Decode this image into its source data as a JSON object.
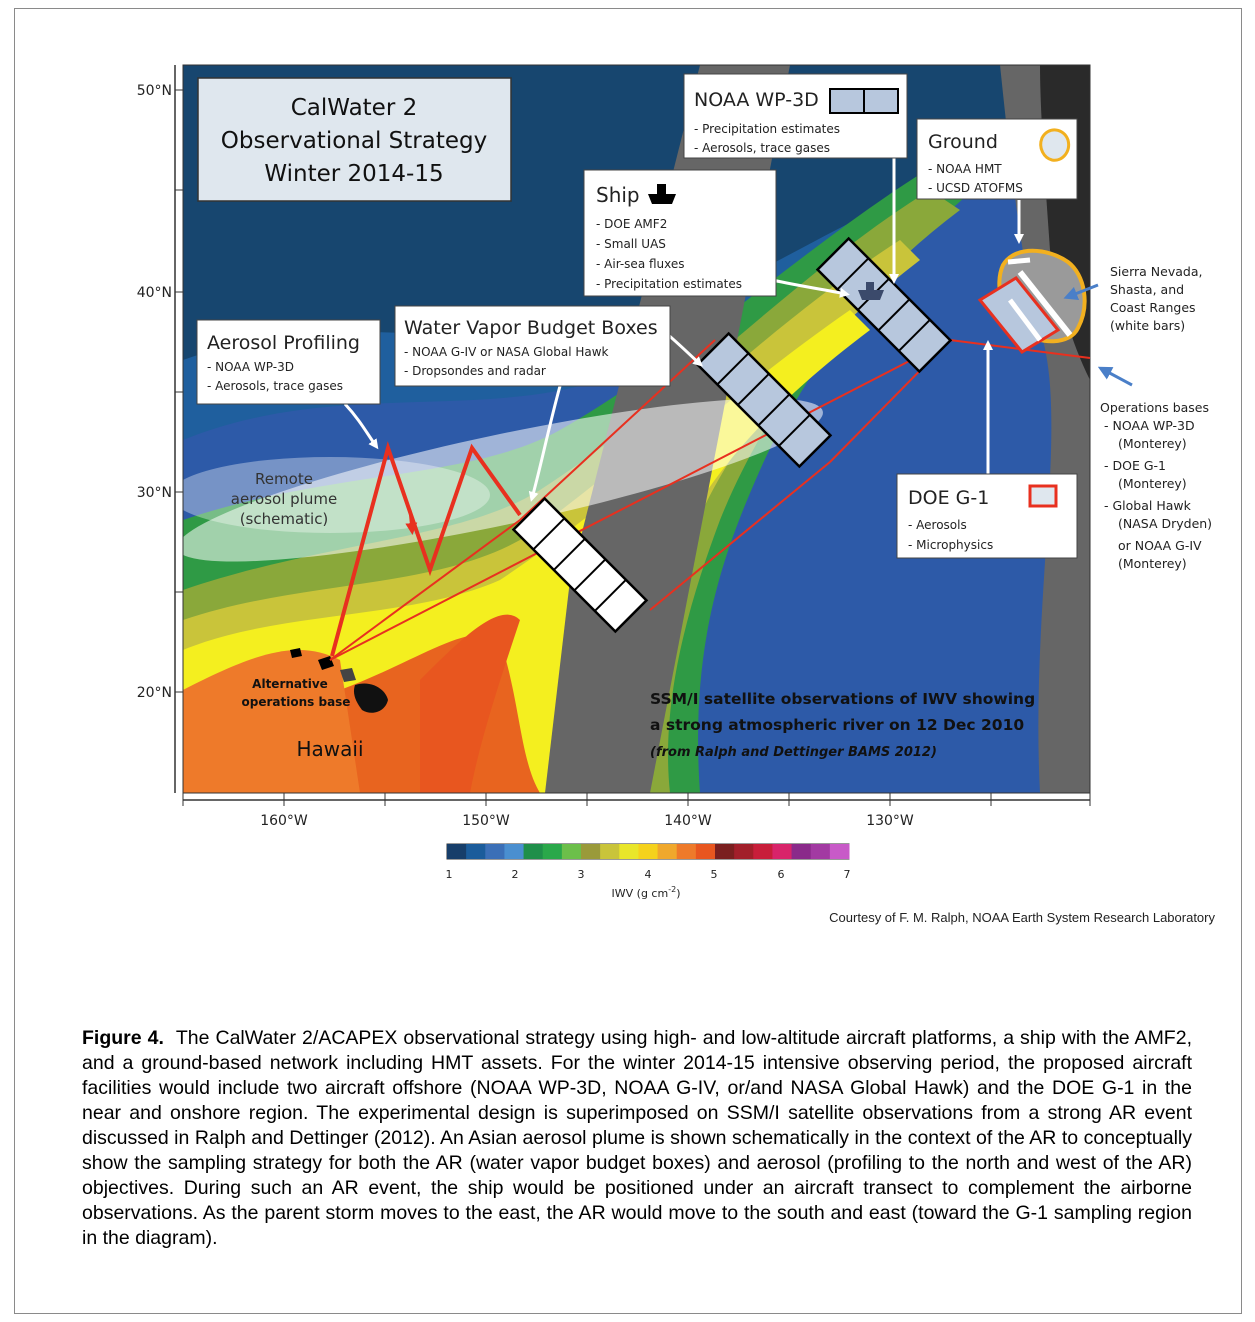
{
  "map": {
    "title_lines": [
      "CalWater 2",
      "Observational Strategy",
      "Winter 2014-15"
    ],
    "lat_ticks": [
      "50°N",
      "40°N",
      "30°N",
      "20°N"
    ],
    "lon_ticks": [
      "160°W",
      "150°W",
      "140°W",
      "130°W"
    ],
    "plume_lines": [
      "Remote",
      "aerosol plume",
      "(schematic)"
    ],
    "alt_base_lines": [
      "Alternative",
      "operations base"
    ],
    "hawaii": "Hawaii",
    "ssmi_lines": [
      "SSM/I satellite observations of IWV showing",
      "a strong atmospheric river on 12 Dec 2010"
    ],
    "ssmi_source": "(from Ralph and Dettinger BAMS 2012)",
    "boxes": {
      "aerosol": {
        "title": "Aerosol Profiling",
        "items": [
          "- NOAA WP-3D",
          "- Aerosols, trace gases"
        ]
      },
      "wvbb": {
        "title": "Water Vapor Budget Boxes",
        "items": [
          "- NOAA G-IV or NASA Global Hawk",
          "- Dropsondes and radar"
        ]
      },
      "ship": {
        "title": "Ship",
        "items": [
          "- DOE AMF2",
          "- Small UAS",
          "- Air-sea fluxes",
          "- Precipitation estimates"
        ]
      },
      "wp3d": {
        "title": "NOAA WP-3D",
        "items": [
          "- Precipitation estimates",
          "- Aerosols, trace gases"
        ]
      },
      "ground": {
        "title": "Ground",
        "items": [
          "- NOAA HMT",
          "- UCSD ATOFMS"
        ]
      },
      "g1": {
        "title": "DOE G-1",
        "items": [
          "- Aerosols",
          "- Microphysics"
        ]
      }
    },
    "sierra_lines": [
      "Sierra Nevada,",
      "Shasta, and",
      "Coast Ranges",
      "(white bars)"
    ],
    "ops_lines": [
      "Operations bases",
      "- NOAA WP-3D",
      "(Monterey)",
      "- DOE G-1",
      "(Monterey)",
      "- Global Hawk",
      "(NASA Dryden)",
      "or NOAA G-IV",
      "(Monterey)"
    ],
    "colorbar": {
      "ticks": [
        "1",
        "2",
        "3",
        "4",
        "5",
        "6",
        "7"
      ],
      "label": "IWV (g cm",
      "label_sup": "-2",
      "label_end": ")",
      "colors": [
        "#173e6a",
        "#1b5c9b",
        "#3b6fb7",
        "#4a8fd0",
        "#1f8f4a",
        "#2aa84a",
        "#6cbf4a",
        "#9a9a3a",
        "#c9c43a",
        "#e9e62a",
        "#f5d21c",
        "#f0a82c",
        "#ee7a2a",
        "#e8561f",
        "#7a1f1f",
        "#a21f2a",
        "#c81e3a",
        "#d8246a",
        "#8a2a8a",
        "#a23aa2",
        "#c85ac8"
      ]
    },
    "colors": {
      "ocean_deep": "#17466f",
      "ocean_blue": "#2d5aa8",
      "green": "#2f9a45",
      "olive": "#a3a23a",
      "yellow": "#f4ef1f",
      "orange": "#e8641f",
      "swath_gap": "#666666",
      "land": "#2a2a2a",
      "flight_red": "#e8301f",
      "box_fill": "#b7c7dd"
    }
  },
  "credit": "Courtesy of F. M. Ralph, NOAA Earth System Research Laboratory",
  "caption": {
    "label": "Figure 4.",
    "text": "The CalWater 2/ACAPEX observational strategy using high- and low-altitude aircraft platforms, a ship with the AMF2, and a ground-based network including HMT assets. For the winter 2014-15 intensive observing period, the proposed aircraft facilities would include two aircraft offshore (NOAA WP-3D, NOAA G-IV, or/and NASA Global Hawk) and the DOE G-1 in the near and onshore region. The experimental design is superimposed on SSM/I satellite observations from a strong AR event discussed in Ralph and Dettinger (2012). An Asian aerosol plume is shown schematically in the context of the AR to conceptually show the sampling strategy for both the AR (water vapor budget boxes) and aerosol (profiling to the north and west of the AR) objectives. During such an AR event, the ship would be positioned under an aircraft transect to complement the airborne observations. As the parent storm moves to the east, the AR would move to the south and east (toward the G-1 sampling region in the diagram)."
  }
}
